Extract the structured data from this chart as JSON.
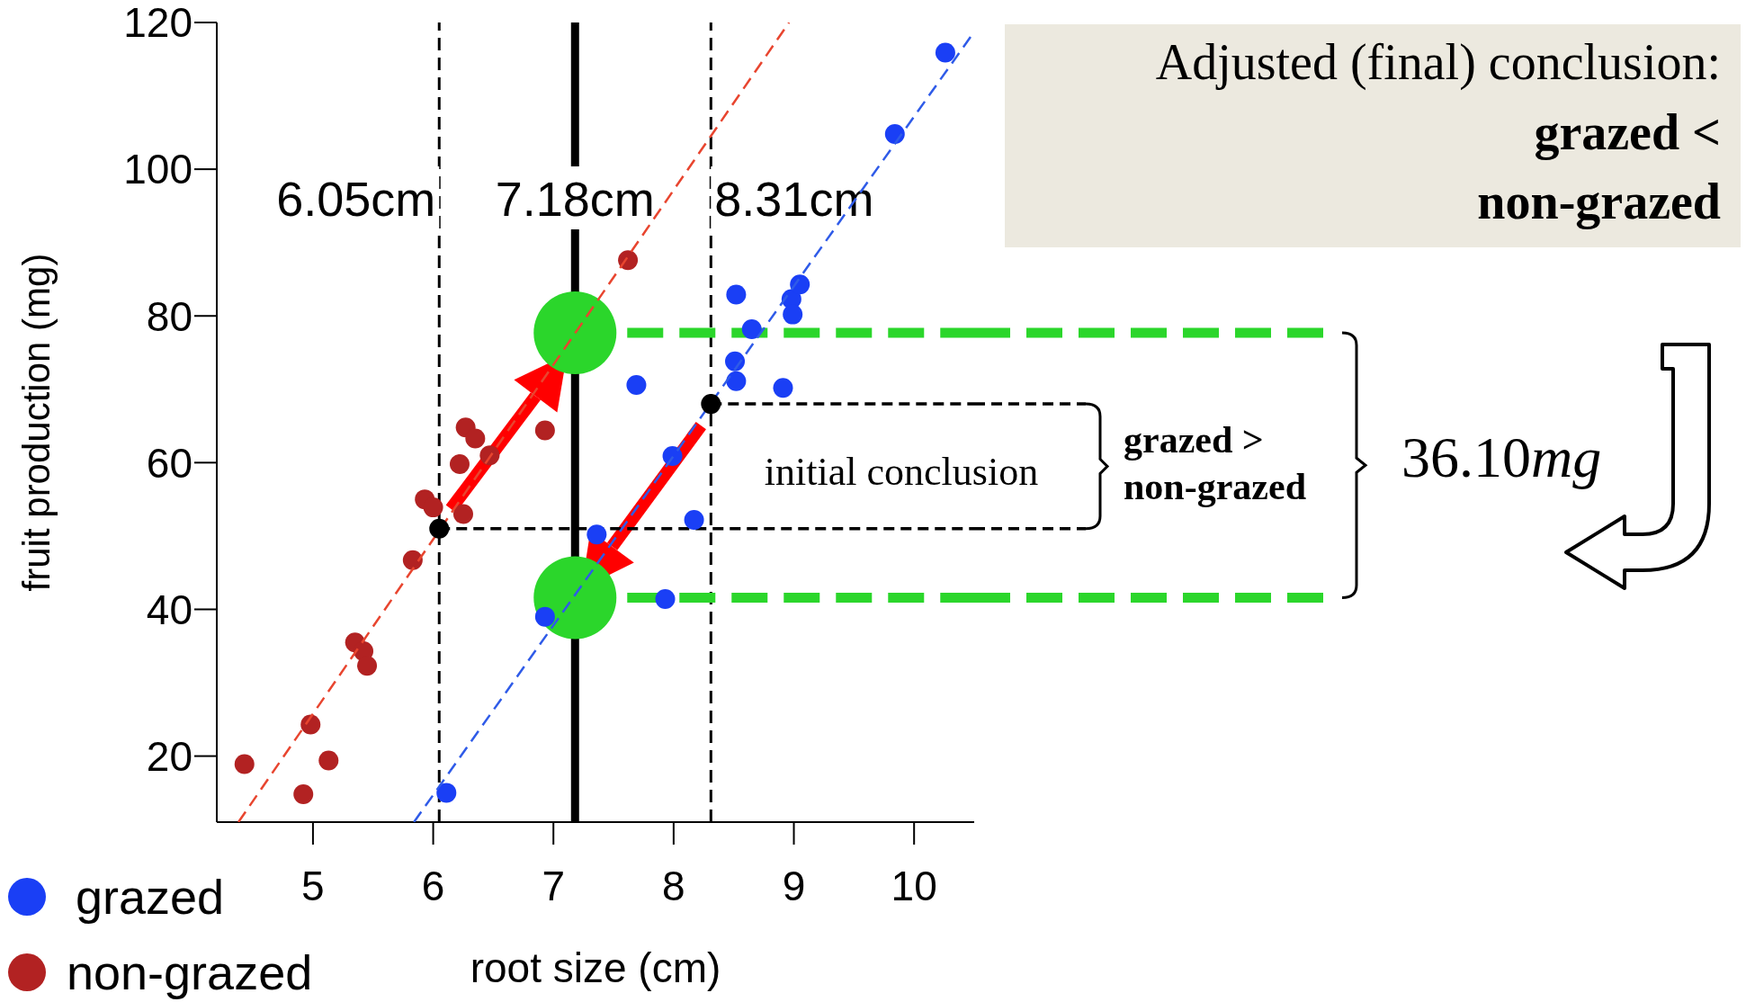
{
  "chart_data": {
    "type": "scatter",
    "xlabel": "root size (cm)",
    "ylabel": "fruit production (mg)",
    "xlim": [
      4.2,
      10.5
    ],
    "ylim": [
      11,
      120
    ],
    "xticks": [
      5,
      6,
      7,
      8,
      9,
      10
    ],
    "yticks": [
      20,
      40,
      60,
      80,
      100,
      120
    ],
    "legend": "bottom left",
    "marker": "circle",
    "series": [
      {
        "name": "grazed",
        "color": "#1a3ff5",
        "x": [
          6.11,
          6.93,
          7.36,
          7.69,
          7.99,
          8.17,
          7.93,
          8.52,
          8.65,
          8.51,
          8.52,
          8.91,
          8.98,
          9.05,
          8.99,
          9.84,
          10.26
        ],
        "values": [
          15,
          39,
          50.2,
          70.6,
          60.9,
          52.2,
          41.4,
          82.9,
          78.2,
          73.8,
          71.1,
          70.2,
          82.3,
          84.3,
          80.2,
          104.8,
          115.9
        ]
      },
      {
        "name": "non-grazed",
        "color": "#b22222",
        "x": [
          4.43,
          4.92,
          4.98,
          5.13,
          5.35,
          5.42,
          5.45,
          5.83,
          5.93,
          6.0,
          6.25,
          6.22,
          6.27,
          6.35,
          6.47,
          6.93,
          7.62
        ],
        "values": [
          18.9,
          14.8,
          24.3,
          19.4,
          35.5,
          34.3,
          32.3,
          46.7,
          55,
          53.9,
          53,
          59.8,
          64.8,
          63.3,
          61,
          64.4,
          87.6
        ]
      },
      {
        "type": "line",
        "line_style": "dashed",
        "marker": "none",
        "color": "#e8452f",
        "x": [
          4.38,
          8.96
        ],
        "values": [
          11,
          120
        ]
      },
      {
        "type": "line",
        "line_style": "dashed",
        "marker": "none",
        "color": "#2f5be8",
        "x": [
          5.84,
          10.49
        ],
        "values": [
          11,
          118.5
        ]
      },
      {
        "color": "#000000",
        "x": [
          6.05,
          8.31
        ],
        "values": [
          51,
          68
        ]
      },
      {
        "type": "bubble",
        "color": "#2bd62b",
        "x": [
          7.18,
          7.18
        ],
        "values": [
          77.7,
          41.6
        ],
        "sizes": [
          1,
          1
        ]
      }
    ],
    "ref_lines": [
      {
        "axis": "x",
        "value": 6.05,
        "label": "6.05cm",
        "color": "#000000",
        "line_style": "dashed"
      },
      {
        "axis": "x",
        "value": 7.18,
        "label": "7.18cm",
        "color": "#000000",
        "line_style": "solid"
      },
      {
        "axis": "x",
        "value": 8.31,
        "label": "8.31cm",
        "color": "#000000",
        "line_style": "dashed"
      },
      {
        "axis": "y",
        "value": 68,
        "color": "#000000",
        "line_style": "dashed"
      },
      {
        "axis": "y",
        "value": 51,
        "color": "#000000",
        "line_style": "dashed"
      },
      {
        "axis": "y",
        "value": 77.7,
        "color": "#2bd62b",
        "line_style": "dashed"
      },
      {
        "axis": "y",
        "value": 41.6,
        "color": "#2bd62b",
        "line_style": "dashed"
      }
    ],
    "annotations": [
      "Adjusted (final) conclusion:",
      "grazed <",
      "non-grazed",
      "initial conclusion",
      "grazed >",
      "non-grazed",
      "36.10mg"
    ]
  }
}
